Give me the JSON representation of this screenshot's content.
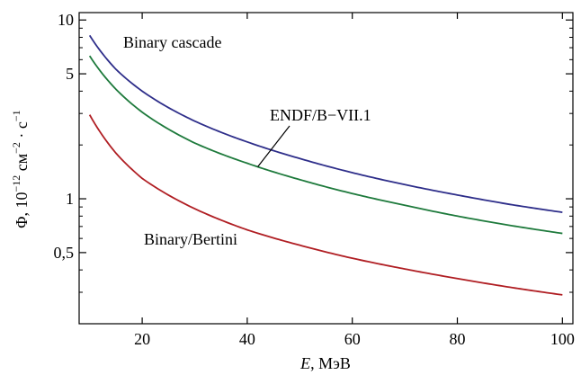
{
  "chart_data": {
    "type": "line",
    "xlabel_var": "E",
    "xlabel_unit": ", МэВ",
    "ylabel_main": "Φ, 10",
    "ylabel_exp1": "−12",
    "ylabel_mid": " см",
    "ylabel_exp2": "−2",
    "ylabel_mid2": " · с",
    "ylabel_exp3": "−1",
    "xlim": [
      8,
      102
    ],
    "ylim": [
      0.2,
      11
    ],
    "yscale": "log",
    "x_ticks": [
      {
        "value": 20,
        "label": "20"
      },
      {
        "value": 40,
        "label": "40"
      },
      {
        "value": 60,
        "label": "60"
      },
      {
        "value": 80,
        "label": "80"
      },
      {
        "value": 100,
        "label": "100"
      }
    ],
    "y_ticks_major": [
      {
        "value": 0.5,
        "label": "0,5"
      },
      {
        "value": 1,
        "label": "1"
      },
      {
        "value": 5,
        "label": "5"
      },
      {
        "value": 10,
        "label": "10"
      }
    ],
    "y_ticks_minor": [
      0.2,
      0.3,
      0.4,
      0.6,
      0.7,
      0.8,
      0.9,
      2,
      3,
      4,
      6,
      7,
      8,
      9
    ],
    "series": [
      {
        "name": "Binary cascade",
        "color": "#2e2e8a",
        "x": [
          10,
          15,
          20,
          30,
          40,
          50,
          60,
          70,
          80,
          90,
          100
        ],
        "y": [
          8.2,
          5.3,
          4.0,
          2.72,
          2.08,
          1.68,
          1.4,
          1.2,
          1.05,
          0.93,
          0.84
        ]
      },
      {
        "name": "ENDF/B−VII.1",
        "color": "#1e7a3c",
        "x": [
          10,
          15,
          20,
          30,
          40,
          50,
          60,
          70,
          80,
          90,
          100
        ],
        "y": [
          6.3,
          4.1,
          3.05,
          2.05,
          1.58,
          1.28,
          1.07,
          0.92,
          0.8,
          0.71,
          0.64
        ]
      },
      {
        "name": "Binary/Bertini",
        "color": "#b01e23",
        "x": [
          10,
          15,
          20,
          30,
          40,
          50,
          60,
          70,
          80,
          90,
          100
        ],
        "y": [
          2.95,
          1.8,
          1.3,
          0.88,
          0.67,
          0.55,
          0.465,
          0.405,
          0.358,
          0.32,
          0.29
        ]
      }
    ],
    "annotations": [
      {
        "text": "Binary cascade",
        "series": 0
      },
      {
        "text": "ENDF/B−VII.1",
        "series": 1
      },
      {
        "text": "Binary/Bertini",
        "series": 2
      }
    ]
  }
}
